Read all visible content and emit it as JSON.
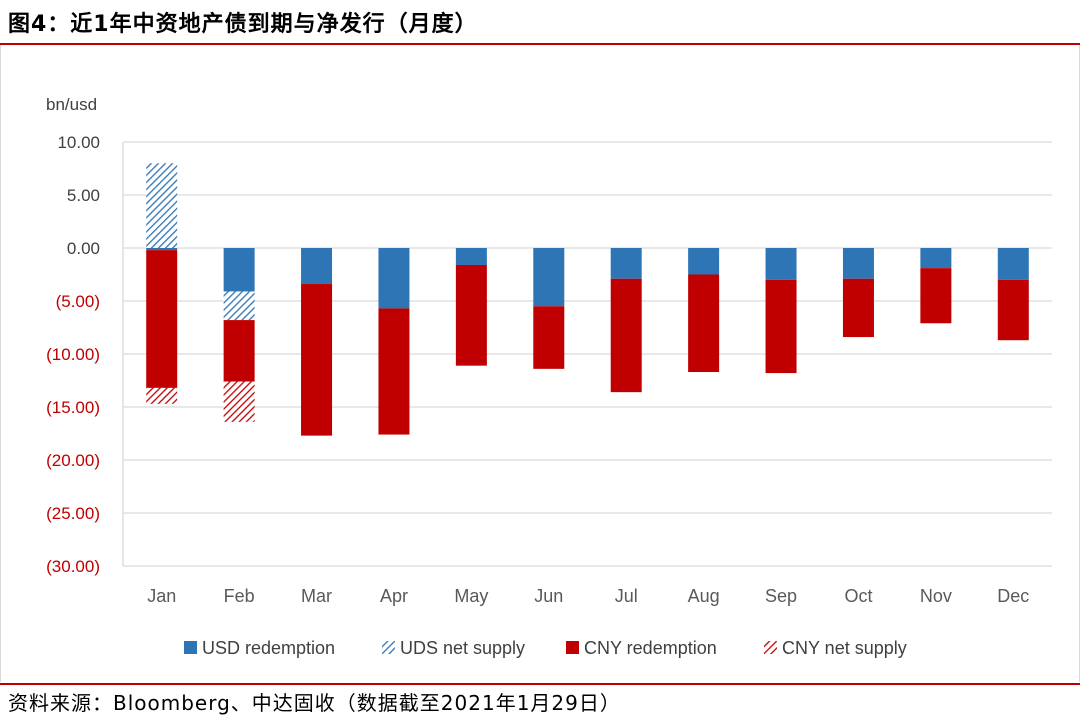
{
  "header": {
    "title": "图4：近1年中资地产债到期与净发行（月度）"
  },
  "footer": {
    "source": "资料来源：Bloomberg、中达固收（数据截至2021年1月29日）"
  },
  "colors": {
    "usd_redemption": "#2e75b6",
    "uds_net_supply": "#2e75b6",
    "cny_redemption": "#c00000",
    "cny_net_supply": "#c00000",
    "header_rule": "#c00000",
    "gridline": "#d9d9d9"
  },
  "chart_data": {
    "type": "bar",
    "stacked": true,
    "ylabel": "bn/usd",
    "ylim": [
      -30,
      10
    ],
    "yticks": [
      10,
      5,
      0,
      -5,
      -10,
      -15,
      -20,
      -25,
      -30
    ],
    "ytick_labels": [
      "10.00",
      "5.00",
      "0.00",
      "(5.00)",
      "(10.00)",
      "(15.00)",
      "(20.00)",
      "(25.00)",
      "(30.00)"
    ],
    "grid": true,
    "legend_position": "bottom",
    "categories": [
      "Jan",
      "Feb",
      "Mar",
      "Apr",
      "May",
      "Jun",
      "Jul",
      "Aug",
      "Sep",
      "Oct",
      "Nov",
      "Dec"
    ],
    "series": [
      {
        "name": "USD redemption",
        "style": "solid",
        "color": "#2e75b6",
        "values": [
          -0.2,
          -4.1,
          -3.4,
          -5.7,
          -1.6,
          -5.5,
          -2.9,
          -2.5,
          -3.0,
          -2.9,
          -1.9,
          -3.0
        ]
      },
      {
        "name": "UDS net supply",
        "style": "hatched",
        "color": "#2e75b6",
        "values": [
          8.0,
          -2.7,
          0,
          0,
          0,
          0,
          0,
          0,
          0,
          0,
          0,
          0
        ]
      },
      {
        "name": "CNY redemption",
        "style": "solid",
        "color": "#c00000",
        "values": [
          -13.0,
          -5.8,
          -14.3,
          -11.9,
          -9.5,
          -5.9,
          -10.7,
          -9.2,
          -8.8,
          -5.5,
          -5.2,
          -5.7
        ]
      },
      {
        "name": "CNY net supply",
        "style": "hatched",
        "color": "#c00000",
        "values": [
          -1.5,
          -3.8,
          0,
          0,
          0,
          0,
          0,
          0,
          0,
          0,
          0,
          0
        ]
      }
    ]
  }
}
